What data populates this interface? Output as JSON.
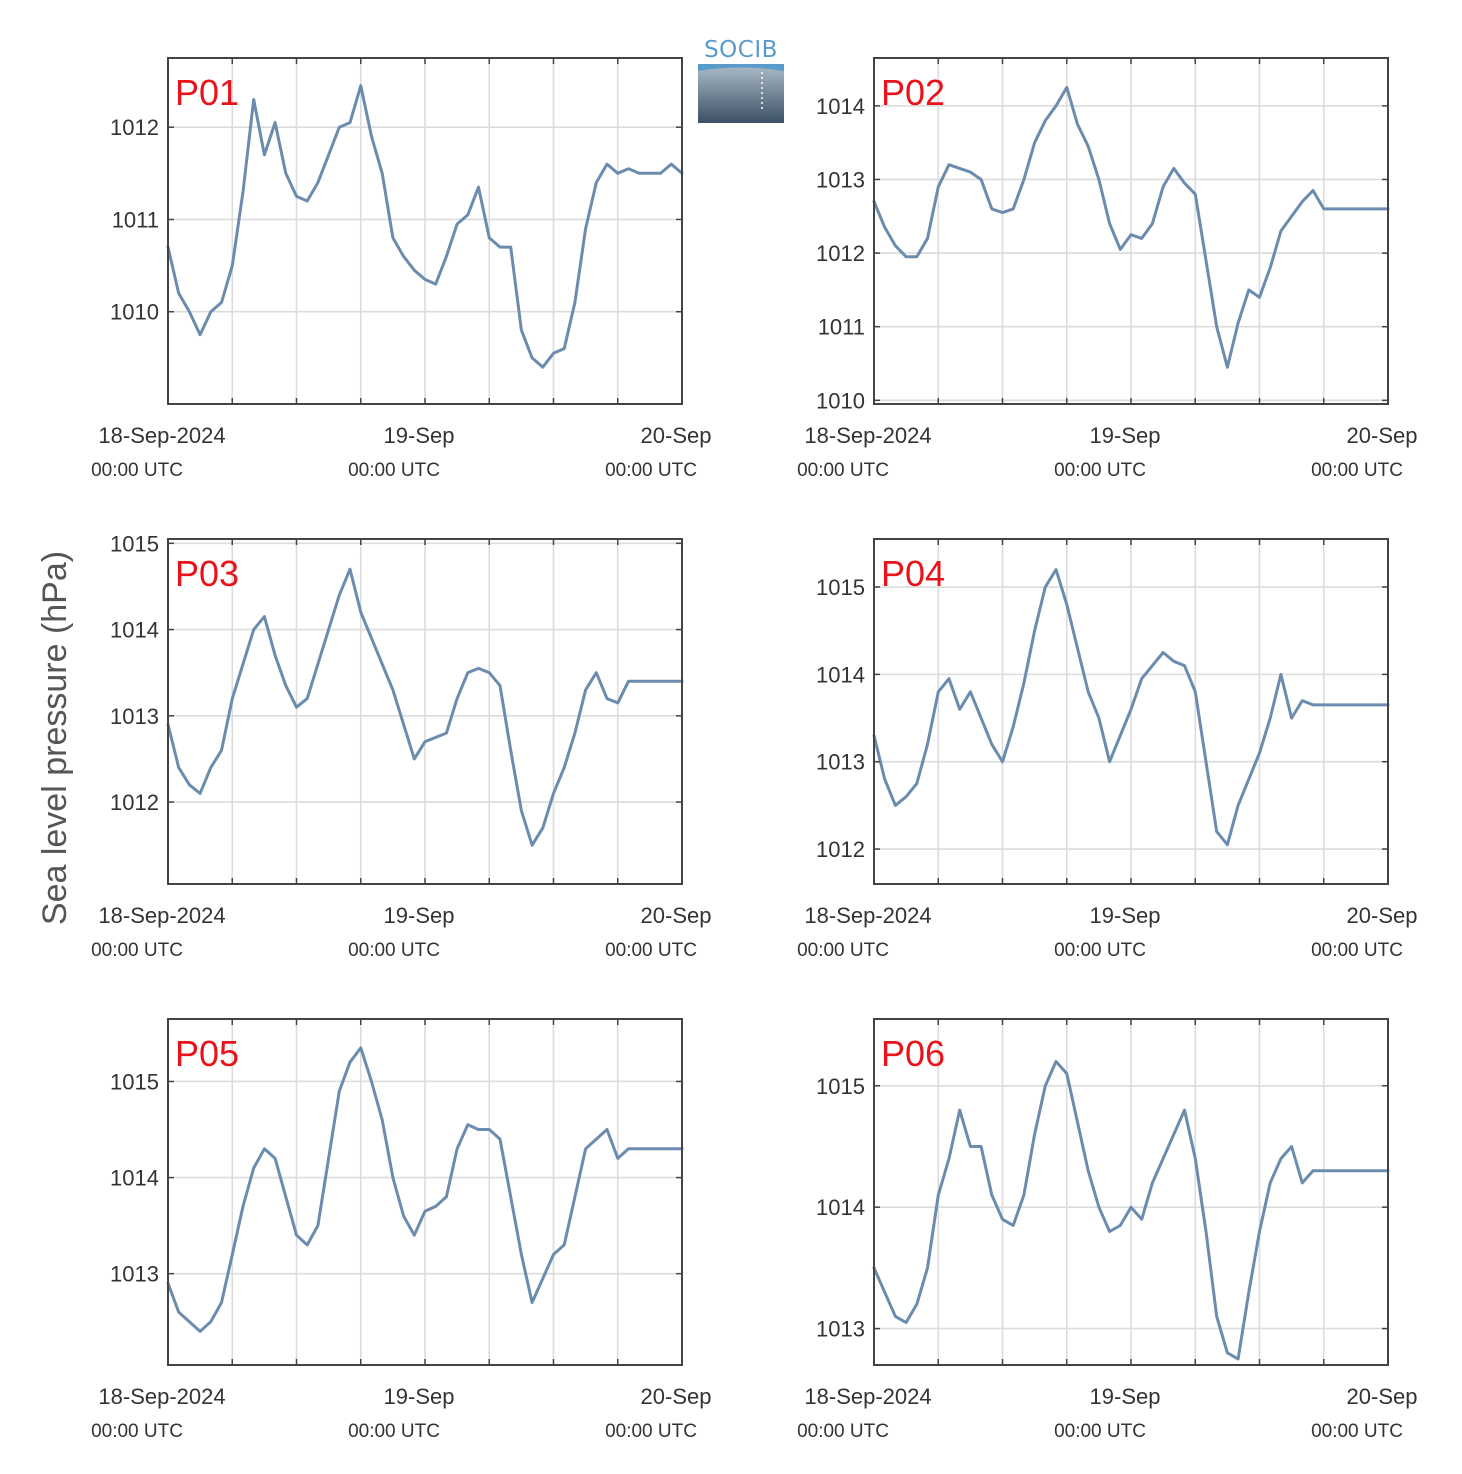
{
  "ylabel": "Sea level pressure (hPa)",
  "logo": {
    "text": "SOCIB"
  },
  "colors": {
    "series": "#6b8cae",
    "panel_label": "#e8131b",
    "grid": "#dcdcdc",
    "axis": "#444444"
  },
  "chart_data": [
    {
      "type": "line",
      "title": "P01",
      "xlim": [
        "18-Sep-2024 00:00",
        "20-Sep-2024 00:00"
      ],
      "ylim": [
        1009.0,
        1012.75
      ],
      "yticks": [
        1010,
        1011,
        1012
      ],
      "xticks": [
        {
          "label": "18-Sep-2024",
          "sub": "00:00 UTC"
        },
        {
          "label": "19-Sep",
          "sub": "00:00 UTC"
        },
        {
          "label": "20-Sep",
          "sub": "00:00 UTC"
        }
      ],
      "x_hours": [
        0,
        1,
        2,
        3,
        4,
        5,
        6,
        7,
        8,
        9,
        10,
        11,
        12,
        13,
        14,
        15,
        16,
        17,
        18,
        19,
        20,
        21,
        22,
        23,
        24,
        25,
        26,
        27,
        28,
        29,
        30,
        31,
        32,
        33,
        34,
        35,
        36,
        37,
        38,
        39,
        40,
        41,
        42,
        43,
        44,
        45,
        46,
        47,
        48
      ],
      "y": [
        1010.7,
        1010.2,
        1010.0,
        1009.75,
        1010.0,
        1010.1,
        1010.5,
        1011.3,
        1012.3,
        1011.7,
        1012.05,
        1011.5,
        1011.25,
        1011.2,
        1011.4,
        1011.7,
        1012.0,
        1012.05,
        1012.45,
        1011.9,
        1011.5,
        1010.8,
        1010.6,
        1010.45,
        1010.35,
        1010.3,
        1010.6,
        1010.95,
        1011.05,
        1011.35,
        1010.8,
        1010.7,
        1010.7,
        1009.8,
        1009.5,
        1009.4,
        1009.55,
        1009.6,
        1010.1,
        1010.9,
        1011.4,
        1011.6,
        1011.5,
        1011.55,
        1011.5,
        1011.5,
        1011.5,
        1011.6,
        1011.5
      ],
      "grid": true
    },
    {
      "type": "line",
      "title": "P02",
      "xlim": [
        "18-Sep-2024 00:00",
        "20-Sep-2024 00:00"
      ],
      "ylim": [
        1009.95,
        1014.65
      ],
      "yticks": [
        1010,
        1011,
        1012,
        1013,
        1014
      ],
      "xticks": [
        {
          "label": "18-Sep-2024",
          "sub": "00:00 UTC"
        },
        {
          "label": "19-Sep",
          "sub": "00:00 UTC"
        },
        {
          "label": "20-Sep",
          "sub": "00:00 UTC"
        }
      ],
      "x_hours": [
        0,
        1,
        2,
        3,
        4,
        5,
        6,
        7,
        8,
        9,
        10,
        11,
        12,
        13,
        14,
        15,
        16,
        17,
        18,
        19,
        20,
        21,
        22,
        23,
        24,
        25,
        26,
        27,
        28,
        29,
        30,
        31,
        32,
        33,
        34,
        35,
        36,
        37,
        38,
        39,
        40,
        41,
        42,
        43,
        44,
        45,
        46,
        47,
        48
      ],
      "y": [
        1012.7,
        1012.35,
        1012.1,
        1011.95,
        1011.95,
        1012.2,
        1012.9,
        1013.2,
        1013.15,
        1013.1,
        1013.0,
        1012.6,
        1012.55,
        1012.6,
        1013.0,
        1013.5,
        1013.8,
        1014.0,
        1014.25,
        1013.75,
        1013.45,
        1013.0,
        1012.4,
        1012.05,
        1012.25,
        1012.2,
        1012.4,
        1012.9,
        1013.15,
        1012.95,
        1012.8,
        1011.9,
        1011.0,
        1010.45,
        1011.05,
        1011.5,
        1011.4,
        1011.8,
        1012.3,
        1012.5,
        1012.7,
        1012.85,
        1012.6,
        1012.6,
        1012.6,
        1012.6,
        1012.6,
        1012.6,
        1012.6
      ],
      "grid": true
    },
    {
      "type": "line",
      "title": "P03",
      "xlim": [
        "18-Sep-2024 00:00",
        "20-Sep-2024 00:00"
      ],
      "ylim": [
        1011.05,
        1015.05
      ],
      "yticks": [
        1012,
        1013,
        1014,
        1015
      ],
      "xticks": [
        {
          "label": "18-Sep-2024",
          "sub": "00:00 UTC"
        },
        {
          "label": "19-Sep",
          "sub": "00:00 UTC"
        },
        {
          "label": "20-Sep",
          "sub": "00:00 UTC"
        }
      ],
      "x_hours": [
        0,
        1,
        2,
        3,
        4,
        5,
        6,
        7,
        8,
        9,
        10,
        11,
        12,
        13,
        14,
        15,
        16,
        17,
        18,
        19,
        20,
        21,
        22,
        23,
        24,
        25,
        26,
        27,
        28,
        29,
        30,
        31,
        32,
        33,
        34,
        35,
        36,
        37,
        38,
        39,
        40,
        41,
        42,
        43,
        44,
        45,
        46,
        47,
        48
      ],
      "y": [
        1012.9,
        1012.4,
        1012.2,
        1012.1,
        1012.4,
        1012.6,
        1013.2,
        1013.6,
        1014.0,
        1014.15,
        1013.7,
        1013.35,
        1013.1,
        1013.2,
        1013.6,
        1014.0,
        1014.4,
        1014.7,
        1014.2,
        1013.9,
        1013.6,
        1013.3,
        1012.9,
        1012.5,
        1012.7,
        1012.75,
        1012.8,
        1013.2,
        1013.5,
        1013.55,
        1013.5,
        1013.35,
        1012.6,
        1011.9,
        1011.5,
        1011.7,
        1012.1,
        1012.4,
        1012.8,
        1013.3,
        1013.5,
        1013.2,
        1013.15,
        1013.4,
        1013.4,
        1013.4,
        1013.4,
        1013.4,
        1013.4
      ],
      "grid": true
    },
    {
      "type": "line",
      "title": "P04",
      "xlim": [
        "18-Sep-2024 00:00",
        "20-Sep-2024 00:00"
      ],
      "ylim": [
        1011.6,
        1015.55
      ],
      "yticks": [
        1012,
        1013,
        1014,
        1015
      ],
      "xticks": [
        {
          "label": "18-Sep-2024",
          "sub": "00:00 UTC"
        },
        {
          "label": "19-Sep",
          "sub": "00:00 UTC"
        },
        {
          "label": "20-Sep",
          "sub": "00:00 UTC"
        }
      ],
      "x_hours": [
        0,
        1,
        2,
        3,
        4,
        5,
        6,
        7,
        8,
        9,
        10,
        11,
        12,
        13,
        14,
        15,
        16,
        17,
        18,
        19,
        20,
        21,
        22,
        23,
        24,
        25,
        26,
        27,
        28,
        29,
        30,
        31,
        32,
        33,
        34,
        35,
        36,
        37,
        38,
        39,
        40,
        41,
        42,
        43,
        44,
        45,
        46,
        47,
        48
      ],
      "y": [
        1013.3,
        1012.8,
        1012.5,
        1012.6,
        1012.75,
        1013.2,
        1013.8,
        1013.95,
        1013.6,
        1013.8,
        1013.5,
        1013.2,
        1013.0,
        1013.4,
        1013.9,
        1014.5,
        1015.0,
        1015.2,
        1014.8,
        1014.3,
        1013.8,
        1013.5,
        1013.0,
        1013.3,
        1013.6,
        1013.95,
        1014.1,
        1014.25,
        1014.15,
        1014.1,
        1013.8,
        1013.0,
        1012.2,
        1012.05,
        1012.5,
        1012.8,
        1013.1,
        1013.5,
        1014.0,
        1013.5,
        1013.7,
        1013.65,
        1013.65,
        1013.65,
        1013.65,
        1013.65,
        1013.65,
        1013.65,
        1013.65
      ],
      "grid": true
    },
    {
      "type": "line",
      "title": "P05",
      "xlim": [
        "18-Sep-2024 00:00",
        "20-Sep-2024 00:00"
      ],
      "ylim": [
        1012.05,
        1015.65
      ],
      "yticks": [
        1013,
        1014,
        1015
      ],
      "xticks": [
        {
          "label": "18-Sep-2024",
          "sub": "00:00 UTC"
        },
        {
          "label": "19-Sep",
          "sub": "00:00 UTC"
        },
        {
          "label": "20-Sep",
          "sub": "00:00 UTC"
        }
      ],
      "x_hours": [
        0,
        1,
        2,
        3,
        4,
        5,
        6,
        7,
        8,
        9,
        10,
        11,
        12,
        13,
        14,
        15,
        16,
        17,
        18,
        19,
        20,
        21,
        22,
        23,
        24,
        25,
        26,
        27,
        28,
        29,
        30,
        31,
        32,
        33,
        34,
        35,
        36,
        37,
        38,
        39,
        40,
        41,
        42,
        43,
        44,
        45,
        46,
        47,
        48
      ],
      "y": [
        1012.9,
        1012.6,
        1012.5,
        1012.4,
        1012.5,
        1012.7,
        1013.2,
        1013.7,
        1014.1,
        1014.3,
        1014.2,
        1013.8,
        1013.4,
        1013.3,
        1013.5,
        1014.2,
        1014.9,
        1015.2,
        1015.35,
        1015.0,
        1014.6,
        1014.0,
        1013.6,
        1013.4,
        1013.65,
        1013.7,
        1013.8,
        1014.3,
        1014.55,
        1014.5,
        1014.5,
        1014.4,
        1013.8,
        1013.2,
        1012.7,
        1012.95,
        1013.2,
        1013.3,
        1013.8,
        1014.3,
        1014.4,
        1014.5,
        1014.2,
        1014.3,
        1014.3,
        1014.3,
        1014.3,
        1014.3,
        1014.3
      ],
      "grid": true
    },
    {
      "type": "line",
      "title": "P06",
      "xlim": [
        "18-Sep-2024 00:00",
        "20-Sep-2024 00:00"
      ],
      "ylim": [
        1012.7,
        1015.55
      ],
      "yticks": [
        1013,
        1014,
        1015
      ],
      "xticks": [
        {
          "label": "18-Sep-2024",
          "sub": "00:00 UTC"
        },
        {
          "label": "19-Sep",
          "sub": "00:00 UTC"
        },
        {
          "label": "20-Sep",
          "sub": "00:00 UTC"
        }
      ],
      "x_hours": [
        0,
        1,
        2,
        3,
        4,
        5,
        6,
        7,
        8,
        9,
        10,
        11,
        12,
        13,
        14,
        15,
        16,
        17,
        18,
        19,
        20,
        21,
        22,
        23,
        24,
        25,
        26,
        27,
        28,
        29,
        30,
        31,
        32,
        33,
        34,
        35,
        36,
        37,
        38,
        39,
        40,
        41,
        42,
        43,
        44,
        45,
        46,
        47,
        48
      ],
      "y": [
        1013.5,
        1013.3,
        1013.1,
        1013.05,
        1013.2,
        1013.5,
        1014.1,
        1014.4,
        1014.8,
        1014.5,
        1014.5,
        1014.1,
        1013.9,
        1013.85,
        1014.1,
        1014.6,
        1015.0,
        1015.2,
        1015.1,
        1014.7,
        1014.3,
        1014.0,
        1013.8,
        1013.85,
        1014.0,
        1013.9,
        1014.2,
        1014.4,
        1014.6,
        1014.8,
        1014.4,
        1013.8,
        1013.1,
        1012.8,
        1012.75,
        1013.3,
        1013.8,
        1014.2,
        1014.4,
        1014.5,
        1014.2,
        1014.3,
        1014.3,
        1014.3,
        1014.3,
        1014.3,
        1014.3,
        1014.3,
        1014.3
      ],
      "grid": true
    }
  ]
}
